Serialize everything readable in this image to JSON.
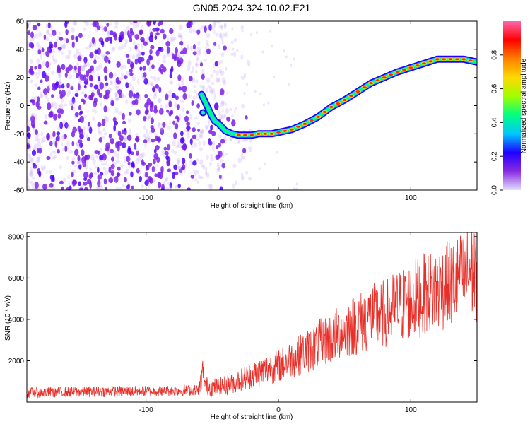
{
  "title": "GN05.2024.324.10.02.E21",
  "colors": {
    "snr_line": "#e8302a",
    "noise_dots": "#7a1fe8",
    "axis": "#000000"
  },
  "chart_data": [
    {
      "type": "heatmap",
      "xlabel": "Height of straight line (km)",
      "ylabel": "Frequency (Hz)",
      "xlim": [
        -190,
        150
      ],
      "ylim": [
        -60,
        60
      ],
      "xticks": [
        -100,
        0,
        100
      ],
      "yticks": [
        -60,
        -40,
        -20,
        0,
        20,
        40,
        60
      ],
      "grid": false,
      "colorbar": {
        "label": "Normalized spectral amplitude",
        "range": [
          0.0,
          1.0
        ],
        "ticks": [
          0.0,
          0.2,
          0.4,
          0.6,
          0.8
        ],
        "colormap": [
          "#e0e0ff",
          "#8a2be2",
          "#1e00ff",
          "#00c8ff",
          "#00ff80",
          "#a0ff00",
          "#ffd800",
          "#ff8000",
          "#ff0000",
          "#ff66aa"
        ]
      },
      "ridge": {
        "x": [
          -58,
          -55,
          -52,
          -50,
          -48,
          -45,
          -42,
          -40,
          -35,
          -30,
          -25,
          -20,
          -15,
          -10,
          -5,
          0,
          5,
          10,
          20,
          30,
          40,
          50,
          60,
          70,
          80,
          90,
          100,
          110,
          120,
          130,
          140,
          150
        ],
        "y": [
          8,
          2,
          -4,
          -8,
          -11,
          -13,
          -16,
          -18,
          -20,
          -21,
          -21,
          -21,
          -20,
          -20,
          -20,
          -19,
          -18,
          -17,
          -13,
          -8,
          -1,
          4,
          10,
          16,
          20,
          24,
          27,
          30,
          33,
          33,
          33,
          31
        ]
      },
      "noise_region_x": [
        -190,
        -40
      ]
    },
    {
      "type": "line",
      "xlabel": "Height of straight line (km)",
      "ylabel": "SNR (10 * v/v)",
      "xlim": [
        -190,
        150
      ],
      "ylim": [
        0,
        8200
      ],
      "xticks": [
        -100,
        0,
        100
      ],
      "yticks": [
        2000,
        4000,
        6000,
        8000
      ],
      "grid": false,
      "series": [
        {
          "x": [
            -190,
            -170,
            -150,
            -130,
            -110,
            -90,
            -70,
            -60,
            -57,
            -55,
            -50,
            -40,
            -30,
            -20,
            -10,
            0,
            10,
            20,
            30,
            40,
            50,
            60,
            70,
            80,
            90,
            100,
            110,
            120,
            130,
            140,
            145,
            150
          ],
          "y": [
            450,
            480,
            500,
            510,
            520,
            540,
            560,
            600,
            1500,
            800,
            700,
            800,
            1050,
            1300,
            1550,
            1750,
            2100,
            2400,
            2800,
            3100,
            3500,
            3800,
            4100,
            4300,
            4600,
            4900,
            5200,
            5400,
            5700,
            6000,
            6500,
            6200
          ]
        }
      ]
    }
  ]
}
